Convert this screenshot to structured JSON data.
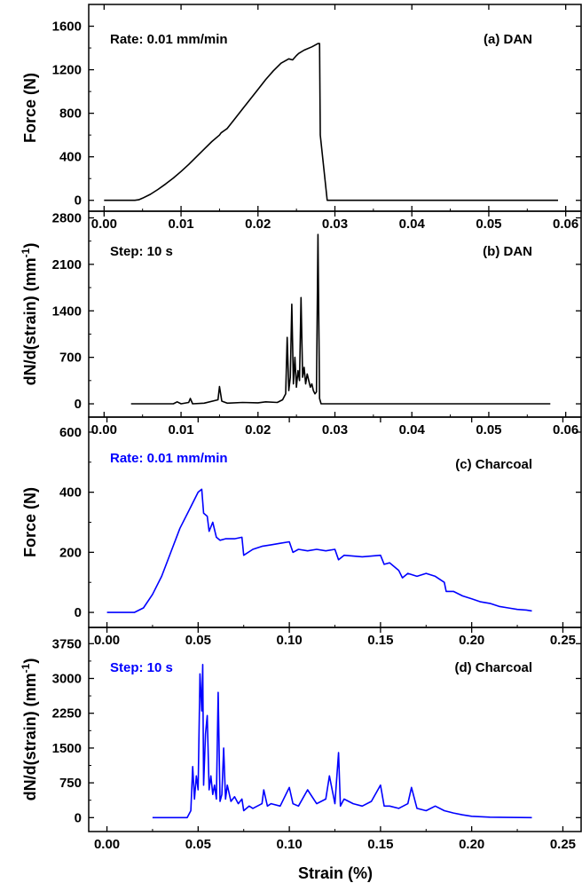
{
  "figure": {
    "xlabel": "Strain (%)"
  },
  "chart_data": [
    {
      "id": "a",
      "type": "line",
      "color": "#000000",
      "ylabel": "Force (N)",
      "ylabel_sup": "",
      "ylabel_tail": "",
      "annotations": {
        "left": "Rate: 0.01 mm/min",
        "right": "(a) DAN"
      },
      "xlim": [
        -0.002,
        0.062
      ],
      "ylim": [
        -100,
        1800
      ],
      "xticks": [
        0.0,
        0.01,
        0.02,
        0.03,
        0.04,
        0.05,
        0.06
      ],
      "xtick_labels": [
        "0.00",
        "0.01",
        "0.02",
        "0.03",
        "0.04",
        "0.05",
        "0.06"
      ],
      "yticks": [
        0,
        400,
        800,
        1200,
        1600
      ],
      "ytick_labels": [
        "0",
        "400",
        "800",
        "1200",
        "1600"
      ],
      "grid": false,
      "series": [
        {
          "x": [
            0.0,
            0.004,
            0.0045,
            0.005,
            0.006,
            0.007,
            0.008,
            0.009,
            0.01,
            0.011,
            0.012,
            0.013,
            0.014,
            0.015,
            0.0152,
            0.016,
            0.017,
            0.018,
            0.019,
            0.02,
            0.021,
            0.022,
            0.023,
            0.024,
            0.0245,
            0.025,
            0.0253,
            0.026,
            0.027,
            0.0278,
            0.028,
            0.0281,
            0.029,
            0.035,
            0.04,
            0.045,
            0.05,
            0.055,
            0.059
          ],
          "y": [
            0,
            0,
            5,
            20,
            55,
            100,
            150,
            205,
            265,
            330,
            400,
            470,
            540,
            600,
            620,
            660,
            750,
            840,
            930,
            1020,
            1110,
            1190,
            1260,
            1300,
            1290,
            1330,
            1350,
            1380,
            1410,
            1440,
            1440,
            600,
            0,
            0,
            0,
            0,
            0,
            0,
            0
          ]
        }
      ]
    },
    {
      "id": "b",
      "type": "line",
      "color": "#000000",
      "ylabel": "dN/d(strain)  (mm",
      "ylabel_sup": "-1",
      "ylabel_tail": ")",
      "annotations": {
        "left": "Step: 10 s",
        "right": "(b) DAN"
      },
      "xlim": [
        -0.002,
        0.062
      ],
      "ylim": [
        -200,
        2900
      ],
      "xticks": [
        0.0,
        0.01,
        0.02,
        0.03,
        0.04,
        0.05,
        0.06
      ],
      "xtick_labels": [
        "0.00",
        "0.01",
        "0.02",
        "0.03",
        "0.04",
        "0.05",
        "0.06"
      ],
      "yticks": [
        0,
        700,
        1400,
        2100,
        2800
      ],
      "ytick_labels": [
        "0",
        "700",
        "1400",
        "2100",
        "2800"
      ],
      "grid": false,
      "series": [
        {
          "x": [
            0.0035,
            0.009,
            0.0095,
            0.01,
            0.011,
            0.0112,
            0.0115,
            0.013,
            0.0148,
            0.015,
            0.0153,
            0.016,
            0.018,
            0.02,
            0.021,
            0.0225,
            0.0232,
            0.0236,
            0.0238,
            0.024,
            0.0242,
            0.0244,
            0.0246,
            0.0248,
            0.025,
            0.0252,
            0.0254,
            0.0256,
            0.0258,
            0.026,
            0.0262,
            0.0264,
            0.0266,
            0.0268,
            0.027,
            0.0272,
            0.0274,
            0.0276,
            0.0278,
            0.028,
            0.0282,
            0.029,
            0.035,
            0.04,
            0.045,
            0.05,
            0.058
          ],
          "y": [
            0,
            0,
            30,
            0,
            20,
            80,
            0,
            10,
            60,
            260,
            40,
            10,
            20,
            15,
            30,
            20,
            60,
            150,
            1000,
            200,
            400,
            1500,
            300,
            700,
            250,
            500,
            350,
            1600,
            400,
            550,
            300,
            450,
            350,
            250,
            300,
            200,
            150,
            180,
            2550,
            80,
            0,
            0,
            0,
            0,
            0,
            0,
            0
          ]
        }
      ]
    },
    {
      "id": "c",
      "type": "line",
      "color": "#0000ff",
      "ylabel": "Force (N)",
      "ylabel_sup": "",
      "ylabel_tail": "",
      "annotations": {
        "left": "Rate: 0.01 mm/min",
        "right": "(c) Charcoal"
      },
      "xlim": [
        -0.01,
        0.26
      ],
      "ylim": [
        -50,
        650
      ],
      "xticks": [
        0.0,
        0.05,
        0.1,
        0.15,
        0.2,
        0.25
      ],
      "xtick_labels": [
        "0.00",
        "0.05",
        "0.10",
        "0.15",
        "0.20",
        "0.25"
      ],
      "yticks": [
        0,
        200,
        400,
        600
      ],
      "ytick_labels": [
        "0",
        "200",
        "400",
        "600"
      ],
      "grid": false,
      "series": [
        {
          "x": [
            0.0,
            0.015,
            0.02,
            0.025,
            0.03,
            0.035,
            0.04,
            0.045,
            0.05,
            0.052,
            0.053,
            0.055,
            0.056,
            0.058,
            0.06,
            0.062,
            0.065,
            0.07,
            0.074,
            0.075,
            0.08,
            0.085,
            0.09,
            0.095,
            0.1,
            0.102,
            0.105,
            0.11,
            0.115,
            0.12,
            0.125,
            0.127,
            0.13,
            0.14,
            0.15,
            0.152,
            0.155,
            0.16,
            0.162,
            0.165,
            0.17,
            0.175,
            0.18,
            0.185,
            0.186,
            0.19,
            0.195,
            0.2,
            0.205,
            0.21,
            0.215,
            0.22,
            0.225,
            0.23,
            0.233
          ],
          "y": [
            0,
            0,
            15,
            60,
            120,
            200,
            280,
            340,
            400,
            410,
            330,
            320,
            270,
            300,
            250,
            240,
            245,
            245,
            250,
            190,
            210,
            220,
            225,
            230,
            235,
            200,
            210,
            205,
            210,
            205,
            210,
            175,
            190,
            185,
            190,
            160,
            165,
            140,
            115,
            130,
            120,
            130,
            120,
            100,
            70,
            70,
            55,
            45,
            35,
            30,
            20,
            15,
            10,
            8,
            5
          ]
        }
      ]
    },
    {
      "id": "d",
      "type": "line",
      "color": "#0000ff",
      "ylabel": "dN/d(strain)  (mm",
      "ylabel_sup": "-1",
      "ylabel_tail": ")",
      "annotations": {
        "left": "Step: 10 s",
        "right": "(d) Charcoal"
      },
      "xlim": [
        -0.01,
        0.26
      ],
      "ylim": [
        -300,
        4100
      ],
      "xticks": [
        0.0,
        0.05,
        0.1,
        0.15,
        0.2,
        0.25
      ],
      "xtick_labels": [
        "0.00",
        "0.05",
        "0.10",
        "0.15",
        "0.20",
        "0.25"
      ],
      "yticks": [
        0,
        750,
        1500,
        2250,
        3000,
        3750
      ],
      "ytick_labels": [
        "0",
        "750",
        "1500",
        "2250",
        "3000",
        "3750"
      ],
      "grid": false,
      "series": [
        {
          "x": [
            0.025,
            0.044,
            0.046,
            0.047,
            0.048,
            0.049,
            0.05,
            0.051,
            0.052,
            0.0525,
            0.053,
            0.054,
            0.055,
            0.056,
            0.057,
            0.058,
            0.059,
            0.06,
            0.061,
            0.062,
            0.063,
            0.064,
            0.065,
            0.066,
            0.068,
            0.07,
            0.072,
            0.074,
            0.075,
            0.078,
            0.08,
            0.085,
            0.086,
            0.088,
            0.09,
            0.095,
            0.1,
            0.102,
            0.105,
            0.11,
            0.115,
            0.12,
            0.122,
            0.125,
            0.127,
            0.128,
            0.13,
            0.135,
            0.14,
            0.145,
            0.15,
            0.152,
            0.155,
            0.16,
            0.165,
            0.167,
            0.17,
            0.175,
            0.18,
            0.185,
            0.19,
            0.195,
            0.2,
            0.21,
            0.22,
            0.233
          ],
          "y": [
            0,
            0,
            150,
            1100,
            400,
            900,
            600,
            3100,
            2300,
            3300,
            700,
            1800,
            2200,
            600,
            900,
            500,
            700,
            400,
            2700,
            350,
            500,
            1500,
            400,
            700,
            350,
            450,
            300,
            400,
            150,
            250,
            200,
            300,
            600,
            250,
            300,
            250,
            650,
            300,
            250,
            600,
            300,
            400,
            900,
            300,
            1400,
            250,
            400,
            300,
            250,
            350,
            700,
            250,
            250,
            200,
            300,
            650,
            200,
            150,
            250,
            150,
            100,
            60,
            30,
            10,
            5,
            0
          ]
        }
      ]
    }
  ]
}
